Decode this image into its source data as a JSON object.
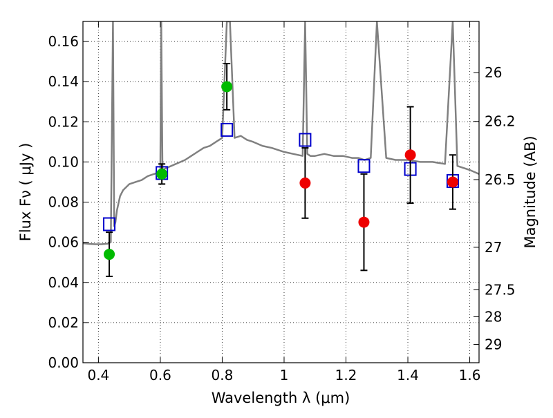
{
  "chart_data": {
    "type": "scatter",
    "xlabel": "Wavelength  λ (μm)",
    "ylabel": "Flux  Fν  ( μJy )",
    "y2label": "Magnitude (AB)",
    "xlim": [
      0.35,
      1.63
    ],
    "ylim": [
      0.0,
      0.17
    ],
    "grid": true,
    "x_ticks": [
      0.4,
      0.6,
      0.8,
      1.0,
      1.2,
      1.4,
      1.6
    ],
    "x_tick_labels": [
      "0.4",
      "0.6",
      "0.8",
      "1",
      "1.2",
      "1.4",
      "1.6"
    ],
    "y_ticks": [
      0.0,
      0.02,
      0.04,
      0.06,
      0.08,
      0.1,
      0.12,
      0.14,
      0.16
    ],
    "y_tick_labels": [
      "0.00",
      "0.02",
      "0.04",
      "0.06",
      "0.08",
      "0.10",
      "0.12",
      "0.14",
      "0.16"
    ],
    "y2_ticks": [
      {
        "label": "26",
        "flux": 0.1445
      },
      {
        "label": "26.2",
        "flux": 0.1202
      },
      {
        "label": "26.5",
        "flux": 0.0912
      },
      {
        "label": "27",
        "flux": 0.0575
      },
      {
        "label": "27.5",
        "flux": 0.0363
      },
      {
        "label": "28",
        "flux": 0.0229
      },
      {
        "label": "29",
        "flux": 0.0091
      }
    ],
    "colors": {
      "template": "#808080",
      "model": "#0000cc",
      "green_points": "#00bb00",
      "red_points": "#ee0000",
      "errorbar": "#000000"
    },
    "series": [
      {
        "kind": "line",
        "color_key": "template",
        "x": [
          0.35,
          0.37,
          0.39,
          0.41,
          0.43,
          0.44,
          0.447,
          0.451,
          0.455,
          0.46,
          0.47,
          0.48,
          0.5,
          0.52,
          0.54,
          0.56,
          0.58,
          0.6,
          0.603,
          0.607,
          0.62,
          0.65,
          0.68,
          0.7,
          0.72,
          0.74,
          0.76,
          0.78,
          0.8,
          0.815,
          0.825,
          0.84,
          0.86,
          0.88,
          0.9,
          0.93,
          0.96,
          1.0,
          1.03,
          1.06,
          1.068,
          1.075,
          1.085,
          1.1,
          1.13,
          1.16,
          1.19,
          1.22,
          1.24,
          1.26,
          1.28,
          1.3,
          1.33,
          1.36,
          1.4,
          1.44,
          1.48,
          1.52,
          1.545,
          1.56,
          1.6,
          1.63
        ],
        "y": [
          0.0595,
          0.0592,
          0.059,
          0.059,
          0.0593,
          0.06,
          0.17,
          0.068,
          0.07,
          0.076,
          0.083,
          0.086,
          0.089,
          0.09,
          0.091,
          0.093,
          0.094,
          0.095,
          0.17,
          0.096,
          0.097,
          0.099,
          0.101,
          0.103,
          0.105,
          0.107,
          0.108,
          0.11,
          0.112,
          0.17,
          0.17,
          0.112,
          0.113,
          0.111,
          0.11,
          0.108,
          0.107,
          0.105,
          0.104,
          0.103,
          0.17,
          0.104,
          0.103,
          0.103,
          0.104,
          0.103,
          0.103,
          0.102,
          0.102,
          0.101,
          0.102,
          0.17,
          0.102,
          0.101,
          0.101,
          0.1,
          0.1,
          0.099,
          0.17,
          0.098,
          0.096,
          0.094
        ]
      },
      {
        "kind": "squares",
        "color_key": "model",
        "x": [
          0.435,
          0.605,
          0.815,
          1.068,
          1.258,
          1.408,
          1.545
        ],
        "y": [
          0.069,
          0.0945,
          0.116,
          0.111,
          0.098,
          0.0965,
          0.0905
        ]
      },
      {
        "kind": "points",
        "color_key": "green_points",
        "x": [
          0.435,
          0.605,
          0.815
        ],
        "y": [
          0.054,
          0.094,
          0.1375
        ],
        "yerr": [
          0.011,
          0.005,
          0.0115
        ]
      },
      {
        "kind": "points",
        "color_key": "red_points",
        "x": [
          1.068,
          1.258,
          1.408,
          1.545
        ],
        "y": [
          0.0895,
          0.07,
          0.1035,
          0.09
        ],
        "yerr": [
          0.0175,
          0.024,
          0.024,
          0.0135
        ]
      }
    ]
  }
}
